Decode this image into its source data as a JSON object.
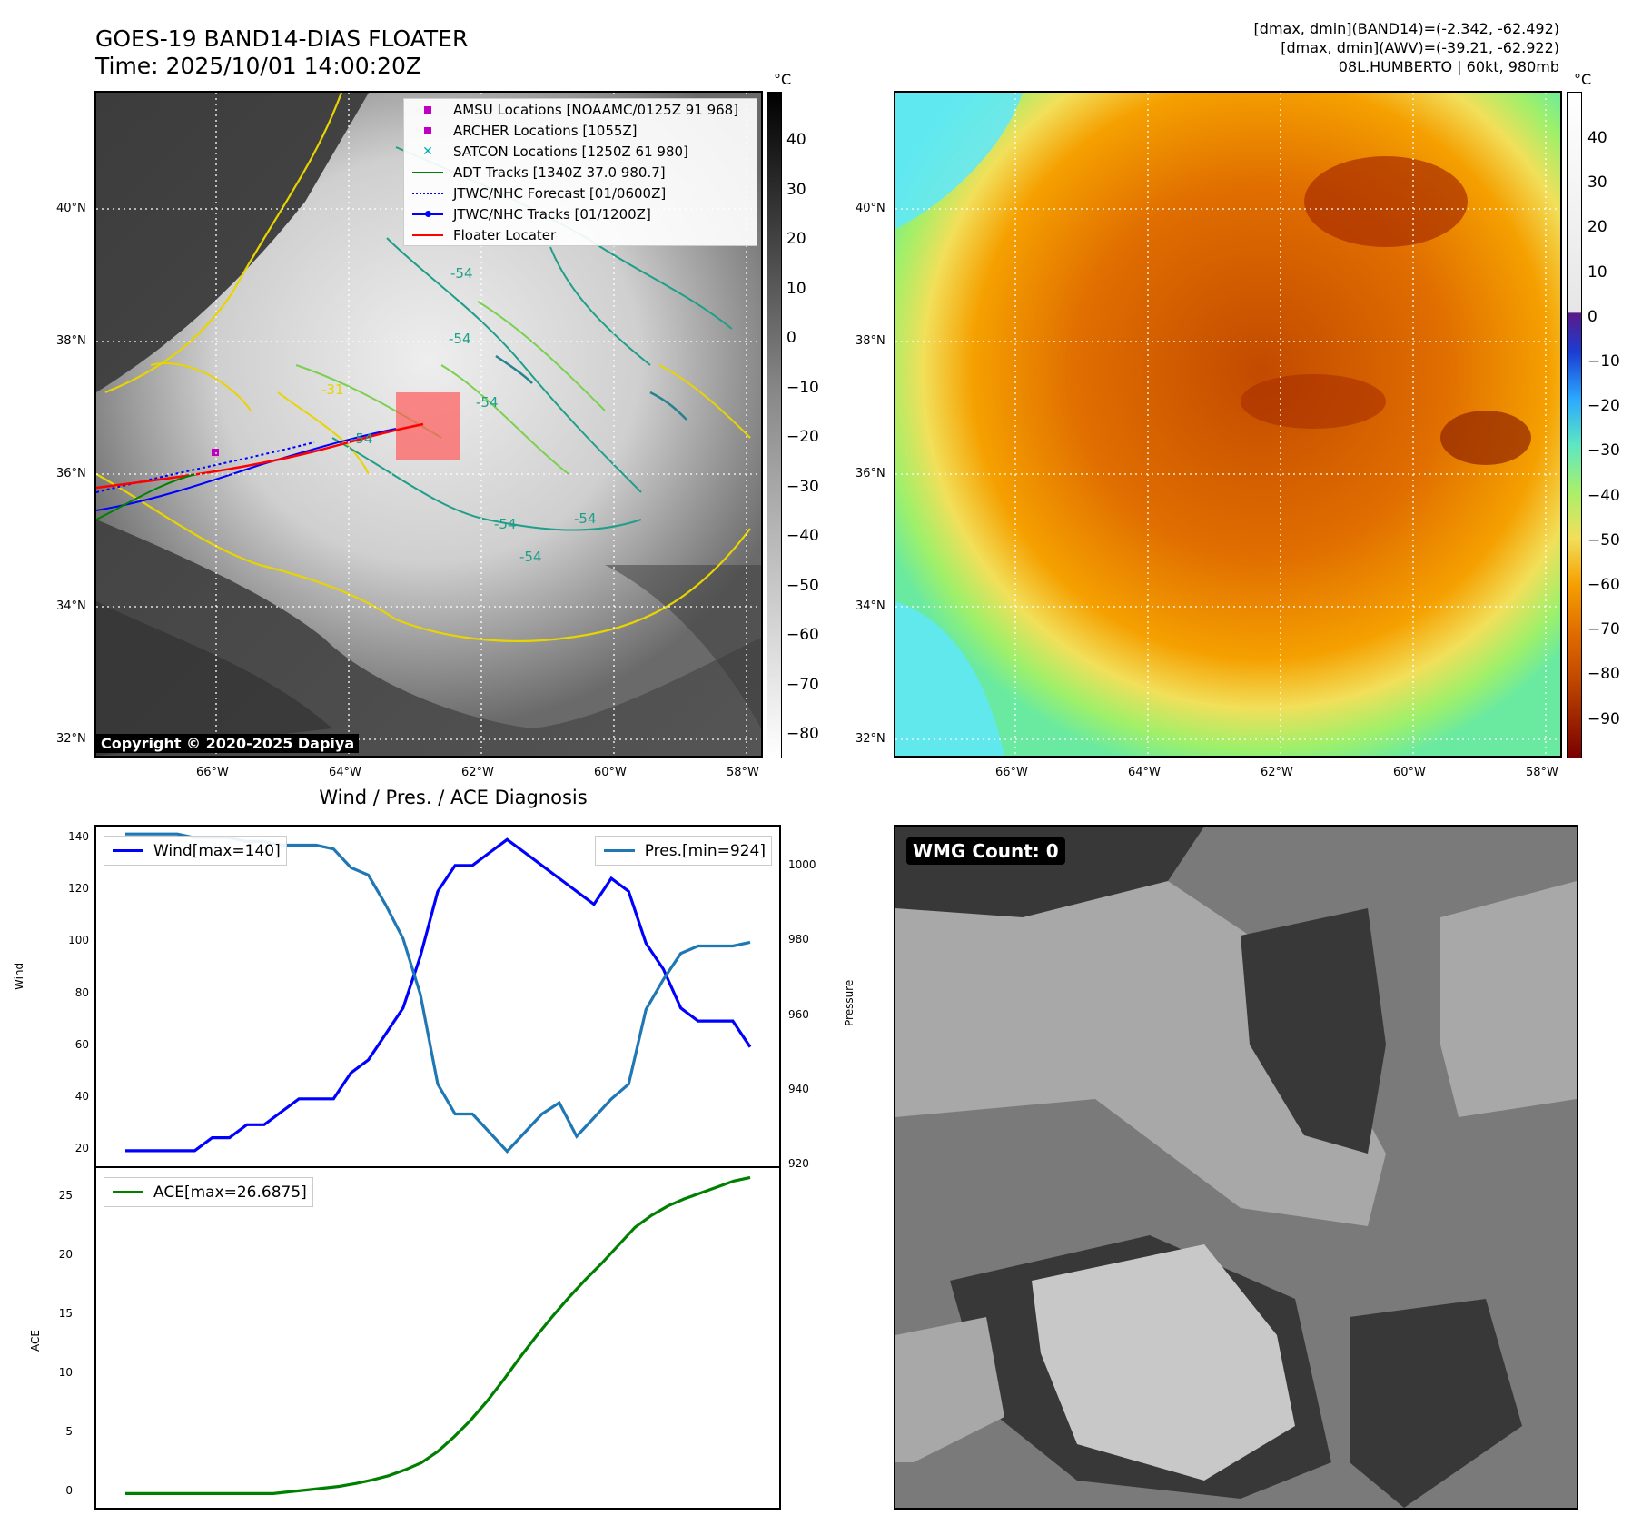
{
  "header": {
    "title": "GOES-19 BAND14-DIAS FLOATER",
    "time": "Time: 2025/10/01 14:00:20Z",
    "stat1": "[dmax, dmin](BAND14)=(-2.342, -62.492)",
    "stat2": "[dmax, dmin](AWV)=(-39.21, -62.922)",
    "storm": "08L.HUMBERTO | 60kt, 980mb"
  },
  "map": {
    "lat_labels": [
      "40°N",
      "38°N",
      "36°N",
      "34°N",
      "32°N"
    ],
    "lon_labels": [
      "66°W",
      "64°W",
      "62°W",
      "60°W",
      "58°W"
    ],
    "copyright": "Copyright © 2020-2025 Dapiya",
    "contour_labels": [
      "-54",
      "-31",
      "-54",
      "-54",
      "-54",
      "-54",
      "-54",
      "-54"
    ],
    "legend": [
      {
        "label": "AMSU Locations [NOAAMC/0125Z 91 968]",
        "color": "#c000c0",
        "symbol": "square"
      },
      {
        "label": "ARCHER Locations [1055Z]",
        "color": "#c000c0",
        "symbol": "square"
      },
      {
        "label": "SATCON Locations [1250Z 61 980]",
        "color": "#00b0b0",
        "symbol": "x"
      },
      {
        "label": "ADT Tracks [1340Z 37.0 980.7]",
        "color": "#008000",
        "symbol": "line"
      },
      {
        "label": "JTWC/NHC Forecast [01/0600Z]",
        "color": "#0000ff",
        "symbol": "dotted"
      },
      {
        "label": "JTWC/NHC Tracks [01/1200Z]",
        "color": "#0000ff",
        "symbol": "line-dot"
      },
      {
        "label": "Floater Locater",
        "color": "#ff0000",
        "symbol": "line"
      }
    ]
  },
  "colorbar_left": {
    "unit": "°C",
    "ticks": [
      "40",
      "30",
      "20",
      "10",
      "0",
      "−10",
      "−20",
      "−30",
      "−40",
      "−50",
      "−60",
      "−70",
      "−80"
    ]
  },
  "colorbar_right": {
    "unit": "°C",
    "ticks": [
      "40",
      "30",
      "20",
      "10",
      "0",
      "−10",
      "−20",
      "−30",
      "−40",
      "−50",
      "−60",
      "−70",
      "−80",
      "−90"
    ]
  },
  "wmg": {
    "label": "WMG Count: 0"
  },
  "chart_data": [
    {
      "type": "line",
      "title": "Wind / Pres. / ACE Diagnosis",
      "ylabel": "Wind",
      "ylabel2": "Pressure",
      "ylim": [
        14,
        145
      ],
      "ylim2": [
        920,
        1011
      ],
      "yticks": [
        20,
        40,
        60,
        80,
        100,
        120,
        140
      ],
      "yticks2": [
        920,
        940,
        960,
        980,
        1000
      ],
      "legend_wind": "Wind[max=140]",
      "legend_pres": "Pres.[min=924]",
      "series": [
        {
          "name": "Wind[max=140]",
          "color": "#0000ff",
          "axis": "left",
          "values": [
            20,
            20,
            20,
            20,
            20,
            25,
            25,
            30,
            30,
            35,
            40,
            40,
            40,
            50,
            55,
            65,
            75,
            95,
            120,
            130,
            130,
            135,
            140,
            135,
            130,
            125,
            120,
            115,
            125,
            120,
            100,
            90,
            75,
            70,
            70,
            70,
            60
          ]
        },
        {
          "name": "Pres.[min=924]",
          "color": "#1f77b4",
          "axis": "right",
          "values": [
            1009,
            1009,
            1009,
            1009,
            1008,
            1008,
            1008,
            1007,
            1007,
            1006,
            1006,
            1006,
            1005,
            1000,
            998,
            990,
            981,
            966,
            942,
            934,
            934,
            929,
            924,
            929,
            934,
            937,
            928,
            933,
            938,
            942,
            962,
            970,
            977,
            979,
            979,
            979,
            980
          ]
        }
      ]
    },
    {
      "type": "line",
      "ylabel": "ACE",
      "ylim": [
        -1.2,
        27.5
      ],
      "yticks": [
        0,
        5,
        10,
        15,
        20,
        25
      ],
      "legend_ace": "ACE[max=26.6875]",
      "series": [
        {
          "name": "ACE[max=26.6875]",
          "color": "#008000",
          "values": [
            0,
            0,
            0,
            0,
            0,
            0,
            0,
            0,
            0,
            0,
            0.15,
            0.3,
            0.45,
            0.6,
            0.85,
            1.15,
            1.5,
            2.0,
            2.6,
            3.55,
            4.8,
            6.2,
            7.8,
            9.6,
            11.5,
            13.3,
            15.0,
            16.6,
            18.1,
            19.5,
            21.0,
            22.5,
            23.5,
            24.3,
            24.9,
            25.4,
            25.9,
            26.4,
            26.7
          ]
        }
      ]
    }
  ]
}
